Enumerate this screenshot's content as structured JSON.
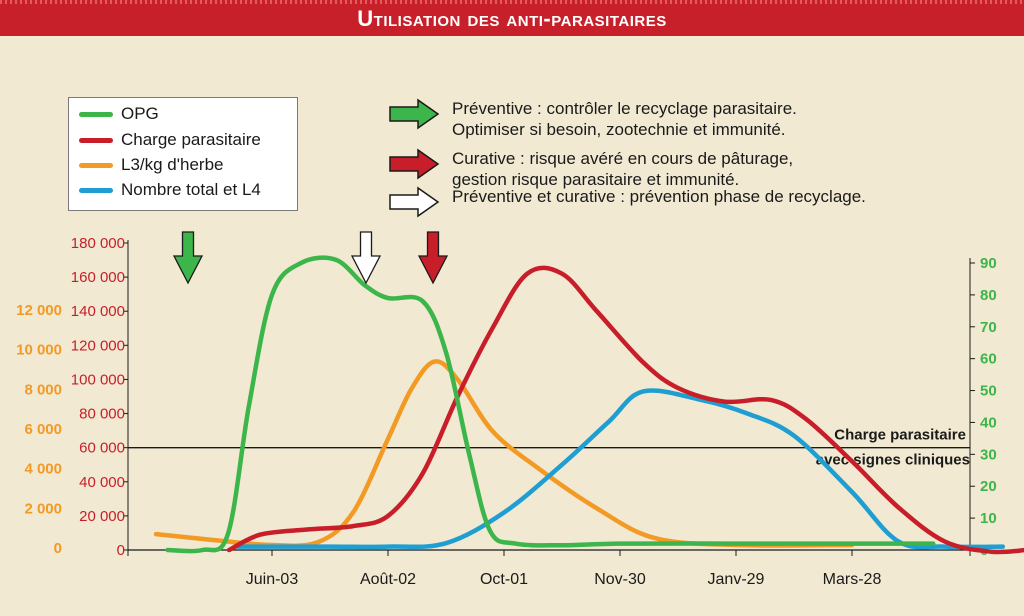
{
  "header": {
    "title": "Utilisation des anti-parasitaires"
  },
  "legend": [
    {
      "label": "OPG",
      "color": "#3cb54a"
    },
    {
      "label": "Charge parasitaire",
      "color": "#c81e2a"
    },
    {
      "label": "L3/kg d'herbe",
      "color": "#f39a24"
    },
    {
      "label": "Nombre total et L4",
      "color": "#1f9ed1"
    }
  ],
  "notes": [
    {
      "icon": "green-arrow-icon",
      "color": "#3cb54a",
      "lines": [
        "Préventive : contrôler le recyclage parasitaire.",
        "Optimiser si besoin, zootechnie et immunité."
      ]
    },
    {
      "icon": "red-arrow-icon",
      "color": "#c81e2a",
      "lines": [
        "Curative : risque avéré en cours de pâturage,",
        "gestion risque parasitaire et immunité."
      ]
    },
    {
      "icon": "white-arrow-icon",
      "color": "#ffffff",
      "lines": [
        "Préventive et curative : prévention phase de recyclage."
      ]
    }
  ],
  "chart_data": {
    "type": "line",
    "x_ticks": [
      "Juin-03",
      "Août-02",
      "Oct-01",
      "Nov-30",
      "Janv-29",
      "Mars-28"
    ],
    "axes": {
      "left_red": {
        "color": "#c81e2a",
        "range": [
          0,
          180000
        ],
        "ticks": [
          "0",
          "20 000",
          "40 000",
          "60 000",
          "80 000",
          "100 000",
          "120 000",
          "140 000",
          "160 000",
          "180 000"
        ]
      },
      "left_orange": {
        "color": "#f39a24",
        "range": [
          0,
          14000
        ],
        "ticks": [
          "0",
          "2 000",
          "4 000",
          "6 000",
          "8 000",
          "10 000",
          "12 000"
        ]
      },
      "right_green": {
        "color": "#3cb54a",
        "range": [
          0,
          90
        ],
        "ticks": [
          "0",
          "10",
          "20",
          "30",
          "40",
          "50",
          "60",
          "70",
          "80",
          "90"
        ]
      }
    },
    "threshold": {
      "value": 60000,
      "label_lines": [
        "Charge parasitaire",
        "avec signes cliniques"
      ]
    },
    "series": [
      {
        "name": "OPG",
        "axis": "right_green",
        "color": "#3cb54a",
        "points": [
          [
            -0.9,
            0
          ],
          [
            -0.6,
            0
          ],
          [
            -0.38,
            5
          ],
          [
            -0.2,
            45
          ],
          [
            0.0,
            80
          ],
          [
            0.25,
            90
          ],
          [
            0.55,
            91
          ],
          [
            0.8,
            83
          ],
          [
            1.0,
            79
          ],
          [
            1.3,
            78
          ],
          [
            1.5,
            62
          ],
          [
            1.7,
            30
          ],
          [
            1.88,
            6
          ],
          [
            2.1,
            2
          ],
          [
            2.5,
            1.5
          ],
          [
            3.0,
            2
          ],
          [
            4.0,
            2
          ],
          [
            5.0,
            2
          ],
          [
            5.7,
            2
          ]
        ]
      },
      {
        "name": "Charge parasitaire",
        "axis": "left_red",
        "color": "#c81e2a",
        "points": [
          [
            -0.37,
            0
          ],
          [
            -0.1,
            9000
          ],
          [
            0.3,
            12000
          ],
          [
            0.7,
            14000
          ],
          [
            1.0,
            20000
          ],
          [
            1.3,
            45000
          ],
          [
            1.6,
            90000
          ],
          [
            1.9,
            130000
          ],
          [
            2.2,
            162000
          ],
          [
            2.5,
            162000
          ],
          [
            2.8,
            140000
          ],
          [
            3.2,
            110000
          ],
          [
            3.5,
            95000
          ],
          [
            3.9,
            87000
          ],
          [
            4.3,
            88000
          ],
          [
            4.6,
            77000
          ],
          [
            5.0,
            52000
          ],
          [
            5.4,
            25000
          ],
          [
            5.8,
            5000
          ],
          [
            6.2,
            -1000
          ],
          [
            6.5,
            0
          ]
        ]
      },
      {
        "name": "L3/kg d'herbe",
        "axis": "left_orange",
        "color": "#f39a24",
        "points": [
          [
            -1.0,
            700
          ],
          [
            -0.5,
            400
          ],
          [
            0.0,
            150
          ],
          [
            0.4,
            300
          ],
          [
            0.7,
            1800
          ],
          [
            1.0,
            5500
          ],
          [
            1.2,
            8000
          ],
          [
            1.4,
            9400
          ],
          [
            1.6,
            8500
          ],
          [
            1.9,
            5900
          ],
          [
            2.3,
            4000
          ],
          [
            2.8,
            2000
          ],
          [
            3.3,
            500
          ],
          [
            4.0,
            150
          ],
          [
            5.0,
            150
          ]
        ]
      },
      {
        "name": "Nombre total et L4",
        "axis": "left_red",
        "color": "#1f9ed1",
        "points": [
          [
            -0.3,
            2000
          ],
          [
            0.5,
            2000
          ],
          [
            1.0,
            2000
          ],
          [
            1.5,
            4000
          ],
          [
            2.0,
            22000
          ],
          [
            2.5,
            50000
          ],
          [
            2.9,
            75000
          ],
          [
            3.2,
            93000
          ],
          [
            3.7,
            88000
          ],
          [
            4.1,
            80000
          ],
          [
            4.5,
            67000
          ],
          [
            5.0,
            34000
          ],
          [
            5.4,
            5000
          ],
          [
            5.8,
            2000
          ],
          [
            6.3,
            2000
          ]
        ]
      }
    ]
  }
}
